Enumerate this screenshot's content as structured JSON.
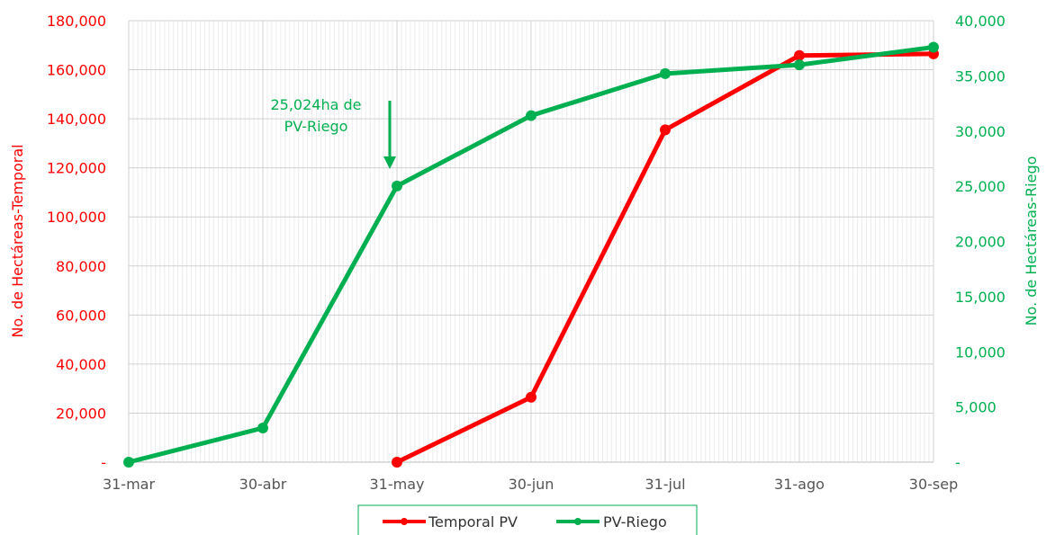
{
  "chart_data": {
    "type": "line",
    "categories": [
      "31-mar",
      "30-abr",
      "31-may",
      "30-jun",
      "31-jul",
      "31-ago",
      "30-sep"
    ],
    "series": [
      {
        "name": "Temporal PV",
        "axis": "left",
        "color": "#ff0000",
        "values": [
          null,
          null,
          0,
          26500,
          135500,
          165800,
          166500
        ]
      },
      {
        "name": "PV-Riego",
        "axis": "right",
        "color": "#00b050",
        "values": [
          0,
          3100,
          25024,
          31400,
          35200,
          36000,
          37600
        ]
      }
    ],
    "ylabel_left": "No. de Hectáreas-Temporal",
    "ylabel_right": "No. de Hectáreas-Riego",
    "ylim_left": [
      0,
      180000
    ],
    "ylim_right": [
      0,
      40000
    ],
    "yticks_left": [
      "-",
      "20,000",
      "40,000",
      "60,000",
      "80,000",
      "100,000",
      "120,000",
      "140,000",
      "160,000",
      "180,000"
    ],
    "yticks_right": [
      "-",
      "5,000",
      "10,000",
      "15,000",
      "20,000",
      "25,000",
      "30,000",
      "35,000",
      "40,000"
    ],
    "annotation": {
      "lines": [
        "25,024ha de",
        "PV-Riego"
      ],
      "category_index": 2,
      "color": "#00b050"
    },
    "legend_position": "bottom",
    "grid": true,
    "left_axis_color": "#ff0000",
    "right_axis_color": "#00b050"
  }
}
